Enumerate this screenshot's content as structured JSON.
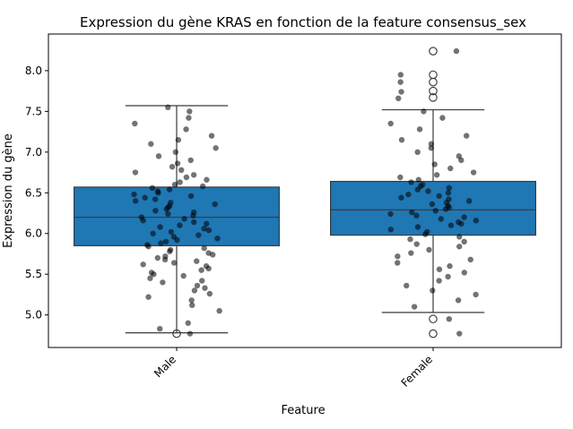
{
  "chart_data": {
    "type": "box",
    "title": "Expression du gène KRAS en fonction de la feature consensus_sex",
    "xlabel": "Feature",
    "ylabel": "Expression du gène",
    "categories": [
      "Male",
      "Female"
    ],
    "ylim": [
      4.6,
      8.45
    ],
    "yticks": [
      5.0,
      5.5,
      6.0,
      6.5,
      7.0,
      7.5,
      8.0
    ],
    "ytick_labels": [
      "5.0",
      "5.5",
      "6.0",
      "6.5",
      "7.0",
      "7.5",
      "8.0"
    ],
    "grid": false,
    "colors": {
      "box": "#1f77b4",
      "edge": "#3b3b3b",
      "points": "#000000",
      "outliers": "#ffffff"
    },
    "boxes": [
      {
        "category": "Male",
        "q1": 5.85,
        "median": 6.2,
        "q3": 6.57,
        "whisker_low": 4.78,
        "whisker_high": 7.57,
        "outliers": [
          4.77
        ]
      },
      {
        "category": "Female",
        "q1": 5.98,
        "median": 6.29,
        "q3": 6.64,
        "whisker_low": 5.03,
        "whisker_high": 7.52,
        "outliers": [
          8.24,
          7.95,
          7.86,
          7.75,
          7.67,
          4.95,
          4.77
        ]
      }
    ],
    "points": [
      {
        "category": "Male",
        "y": [
          4.77,
          4.83,
          4.9,
          5.05,
          5.12,
          5.18,
          5.22,
          5.26,
          5.3,
          5.33,
          5.36,
          5.4,
          5.42,
          5.45,
          5.48,
          5.5,
          5.52,
          5.55,
          5.57,
          5.6,
          5.62,
          5.64,
          5.66,
          5.68,
          5.7,
          5.72,
          5.74,
          5.76,
          5.78,
          5.8,
          5.82,
          5.84,
          5.86,
          5.88,
          5.9,
          5.92,
          5.94,
          5.96,
          5.98,
          6.0,
          6.02,
          6.04,
          6.06,
          6.08,
          6.1,
          6.12,
          6.14,
          6.16,
          6.18,
          6.2,
          6.22,
          6.24,
          6.26,
          6.28,
          6.3,
          6.32,
          6.34,
          6.36,
          6.38,
          6.4,
          6.42,
          6.44,
          6.46,
          6.48,
          6.5,
          6.52,
          6.54,
          6.56,
          6.58,
          6.6,
          6.63,
          6.66,
          6.69,
          6.72,
          6.75,
          6.78,
          6.82,
          6.86,
          6.9,
          6.95,
          7.0,
          7.05,
          7.1,
          7.15,
          7.2,
          7.28,
          7.35,
          7.42,
          7.5,
          7.55
        ]
      },
      {
        "category": "Female",
        "y": [
          4.77,
          4.95,
          5.1,
          5.18,
          5.25,
          5.3,
          5.36,
          5.42,
          5.47,
          5.52,
          5.56,
          5.6,
          5.64,
          5.68,
          5.72,
          5.76,
          5.8,
          5.84,
          5.87,
          5.9,
          5.93,
          5.96,
          5.99,
          6.02,
          6.05,
          6.08,
          6.1,
          6.12,
          6.14,
          6.16,
          6.18,
          6.2,
          6.22,
          6.24,
          6.26,
          6.28,
          6.3,
          6.32,
          6.34,
          6.36,
          6.38,
          6.4,
          6.42,
          6.44,
          6.46,
          6.48,
          6.5,
          6.52,
          6.54,
          6.56,
          6.58,
          6.6,
          6.63,
          6.66,
          6.69,
          6.72,
          6.75,
          6.8,
          6.85,
          6.9,
          6.95,
          7.0,
          7.05,
          7.1,
          7.15,
          7.2,
          7.28,
          7.35,
          7.42,
          7.5,
          7.66,
          7.74,
          7.86,
          7.95,
          8.24
        ]
      }
    ]
  }
}
